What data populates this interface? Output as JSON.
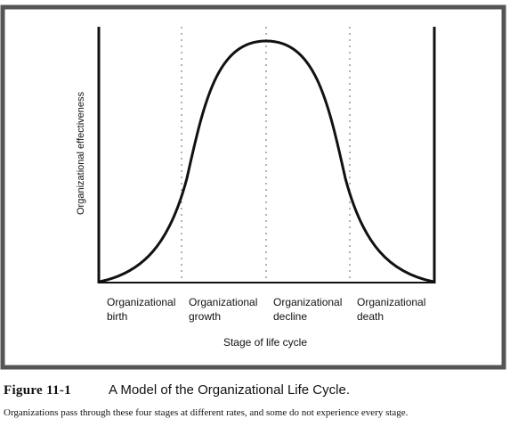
{
  "diagram": {
    "y_axis_label": "Organizational effectiveness",
    "x_axis_label": "Stage of life cycle",
    "stages": [
      {
        "line1": "Organizational",
        "line2": "birth"
      },
      {
        "line1": "Organizational",
        "line2": "growth"
      },
      {
        "line1": "Organizational",
        "line2": "decline"
      },
      {
        "line1": "Organizational",
        "line2": "death"
      }
    ]
  },
  "caption": {
    "figure_number": "Figure 11-1",
    "title": "A Model of the Organizational Life Cycle.",
    "description": "Organizations pass through these four stages at different rates, and some do not experience every stage."
  },
  "colors": {
    "ink": "#111111",
    "frame": "#555555",
    "paper": "#ffffff"
  }
}
